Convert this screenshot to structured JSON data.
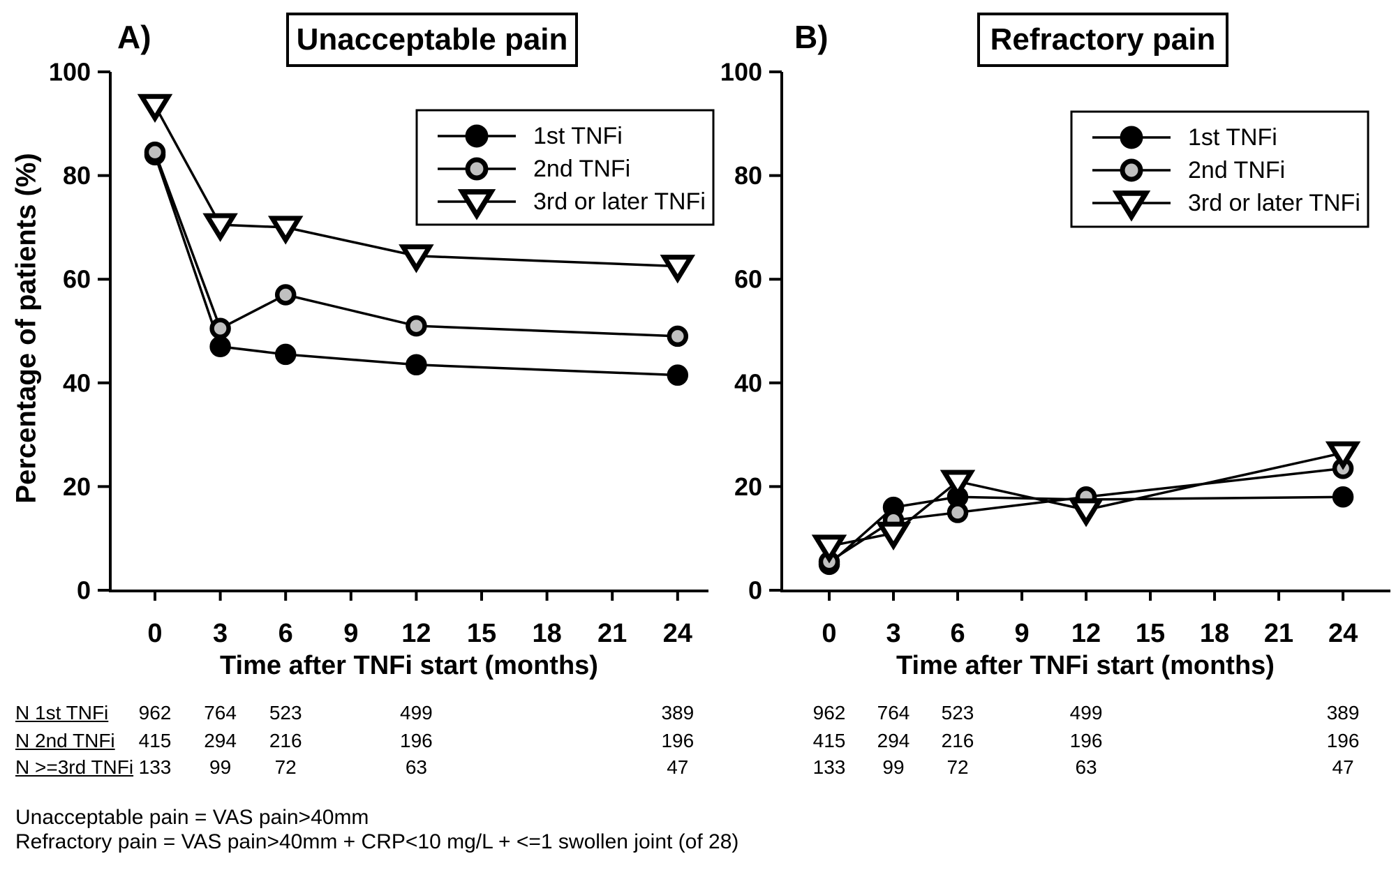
{
  "figure": {
    "panel_a_label": "A)",
    "panel_b_label": "B)",
    "shared_ylabel": "Percentage of patients (%)"
  },
  "chart_data": [
    {
      "id": "A",
      "type": "line",
      "panel_label": "A)",
      "title": "Unacceptable pain",
      "xlabel": "Time after TNFi start (months)",
      "ylabel": "Percentage of patients (%)",
      "x": [
        0,
        3,
        6,
        12,
        24
      ],
      "x_ticks": [
        0,
        3,
        6,
        9,
        12,
        15,
        18,
        21,
        24
      ],
      "y_ticks": [
        0,
        20,
        40,
        60,
        80,
        100
      ],
      "xlim": [
        0,
        24
      ],
      "ylim": [
        0,
        100
      ],
      "grid": false,
      "legend_position": "upper right inside",
      "series": [
        {
          "name": "1st TNFi",
          "marker": "filled-circle",
          "color": "#000000",
          "values": [
            84,
            47,
            45.5,
            43.5,
            41.5
          ]
        },
        {
          "name": "2nd TNFi",
          "marker": "gray-circle",
          "color": "#c0c0c0",
          "values": [
            84.5,
            50.5,
            57,
            51,
            49
          ]
        },
        {
          "name": "3rd or later TNFi",
          "marker": "open-triangle-down",
          "color": "#ffffff",
          "values": [
            93.5,
            70.5,
            70,
            64.5,
            62.5
          ]
        }
      ]
    },
    {
      "id": "B",
      "type": "line",
      "panel_label": "B)",
      "title": "Refractory pain",
      "xlabel": "Time after TNFi start (months)",
      "ylabel": "Percentage of patients (%)",
      "x": [
        0,
        3,
        6,
        12,
        24
      ],
      "x_ticks": [
        0,
        3,
        6,
        9,
        12,
        15,
        18,
        21,
        24
      ],
      "y_ticks": [
        0,
        20,
        40,
        60,
        80,
        100
      ],
      "xlim": [
        0,
        24
      ],
      "ylim": [
        0,
        100
      ],
      "grid": false,
      "legend_position": "upper right inside",
      "series": [
        {
          "name": "1st TNFi",
          "marker": "filled-circle",
          "color": "#000000",
          "values": [
            5,
            16,
            18,
            17.5,
            18
          ]
        },
        {
          "name": "2nd TNFi",
          "marker": "gray-circle",
          "color": "#c0c0c0",
          "values": [
            5.5,
            13.5,
            15,
            18,
            23.5
          ]
        },
        {
          "name": "3rd or later TNFi",
          "marker": "open-triangle-down",
          "color": "#ffffff",
          "values": [
            8.5,
            11,
            21,
            15.5,
            26.5
          ]
        }
      ]
    }
  ],
  "n_table": {
    "column_months": [
      0,
      3,
      6,
      12,
      24
    ],
    "rows": [
      {
        "label": "N 1st TNFi",
        "values": [
          "962",
          "764",
          "523",
          "499",
          "389"
        ]
      },
      {
        "label": "N 2nd TNFi",
        "values": [
          "415",
          "294",
          "216",
          "196",
          "196"
        ]
      },
      {
        "label": "N >=3rd TNFi",
        "values": [
          "133",
          "99",
          "72",
          "63",
          "47"
        ]
      }
    ]
  },
  "footnotes": [
    "Unacceptable pain = VAS pain>40mm",
    "Refractory pain = VAS pain>40mm + CRP<10 mg/L + <=1 swollen joint (of 28)"
  ],
  "colors": {
    "line": "#000000",
    "marker_gray_fill": "#c0c0c0",
    "marker_open_fill": "#ffffff",
    "text": "#000000",
    "background": "#ffffff"
  }
}
